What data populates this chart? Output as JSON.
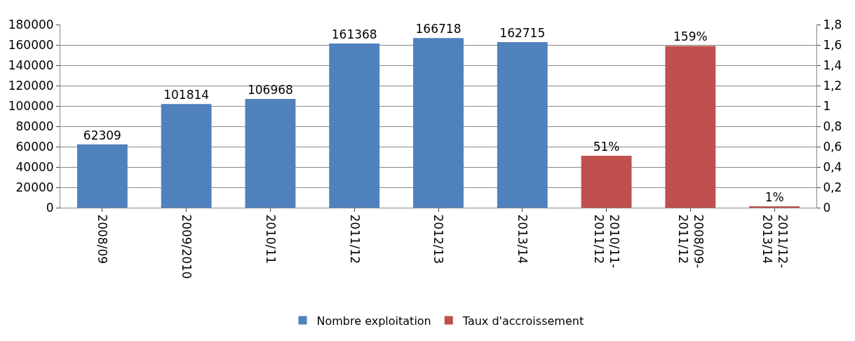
{
  "chart_data": {
    "type": "bar",
    "categories": [
      "2008/09",
      "2009/2010",
      "2010/11",
      "2011/12",
      "2012/13",
      "2013/14",
      "2010/11-2011/12",
      "2008/09-2011/12",
      "2011/12-2013/14"
    ],
    "series": [
      {
        "name": "Nombre exploitation",
        "color": "#4f81bd",
        "values": [
          62309,
          101814,
          106968,
          161368,
          166718,
          162715,
          null,
          null,
          null
        ],
        "value_labels": [
          "62309",
          "101814",
          "106968",
          "161368",
          "166718",
          "162715",
          null,
          null,
          null
        ]
      },
      {
        "name": "Taux d'accroissement",
        "color": "#c0504d",
        "axis": "y2",
        "values": [
          null,
          null,
          null,
          null,
          null,
          null,
          0.51,
          1.59,
          0.01
        ],
        "value_labels": [
          null,
          null,
          null,
          null,
          null,
          null,
          "51%",
          "159%",
          "1%"
        ]
      }
    ],
    "ylim": [
      0,
      180000
    ],
    "yticks": [
      0,
      20000,
      40000,
      60000,
      80000,
      100000,
      120000,
      140000,
      160000,
      180000
    ],
    "y2lim": [
      0,
      1.8
    ],
    "y2ticks": [
      0,
      {
        "value": 0.2,
        "label": "0,2"
      },
      {
        "value": 0.4,
        "label": "0,4"
      },
      {
        "value": 0.6,
        "label": "0,6"
      },
      {
        "value": 0.8,
        "label": "0,8"
      },
      1,
      {
        "value": 1.2,
        "label": "1,2"
      },
      {
        "value": 1.4,
        "label": "1,4"
      },
      {
        "value": 1.6,
        "label": "1,6"
      },
      {
        "value": 1.8,
        "label": "1,8"
      }
    ],
    "grid": "y",
    "legend": "bottom"
  }
}
